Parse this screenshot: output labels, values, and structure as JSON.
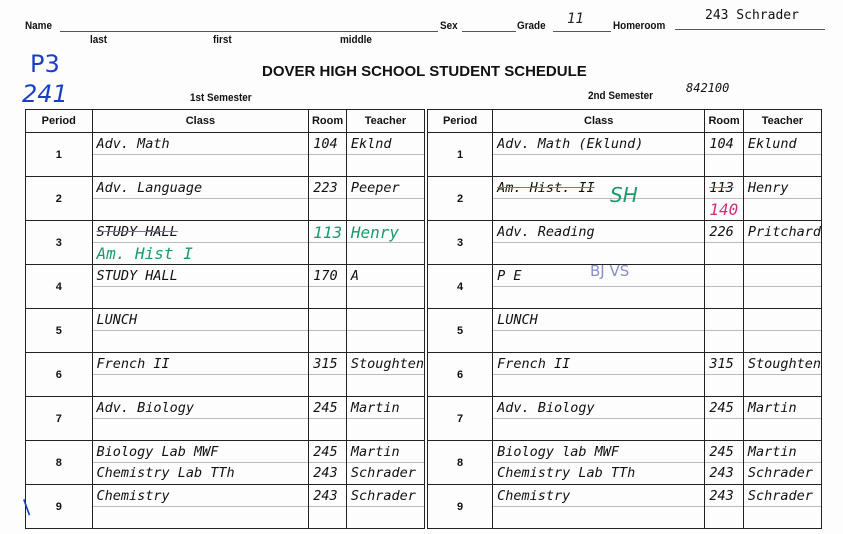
{
  "header": {
    "name_label": "Name",
    "sex_label": "Sex",
    "grade_label": "Grade",
    "grade_value": "11",
    "homeroom_label": "Homeroom",
    "homeroom_value": "243  Schrader",
    "last_label": "last",
    "first_label": "first",
    "middle_label": "middle",
    "note_p3": "P3",
    "note_241": "241",
    "title": "DOVER HIGH SCHOOL STUDENT SCHEDULE",
    "sem1_label": "1st Semester",
    "sem2_label": "2nd Semester",
    "student_number": "842100"
  },
  "columns": {
    "period": "Period",
    "class": "Class",
    "room": "Room",
    "teacher": "Teacher"
  },
  "rows": [
    {
      "period": "1",
      "s1": [
        [
          "Adv. Math",
          "104",
          "Eklnd"
        ],
        [
          "",
          "",
          ""
        ]
      ],
      "s2": [
        [
          "Adv. Math    (Eklund)",
          "104",
          "Eklund"
        ],
        [
          "",
          "",
          ""
        ]
      ]
    },
    {
      "period": "2",
      "s1": [
        [
          "Adv. Language",
          "223",
          "Peeper"
        ],
        [
          "",
          "",
          ""
        ]
      ],
      "s2": [
        [
          "Am. Hist. II",
          "113",
          "Henry"
        ],
        [
          "",
          "140",
          ""
        ]
      ]
    },
    {
      "period": "3",
      "s1": [
        [
          "STUDY HALL",
          "113",
          "Henry"
        ],
        [
          "Am. Hist I",
          "",
          ""
        ]
      ],
      "s2": [
        [
          "Adv. Reading",
          "226",
          "Pritchard"
        ],
        [
          "",
          "",
          ""
        ]
      ]
    },
    {
      "period": "4",
      "s1": [
        [
          "STUDY HALL",
          "170",
          "A"
        ],
        [
          "",
          "",
          ""
        ]
      ],
      "s2": [
        [
          "P E",
          "",
          ""
        ],
        [
          "",
          "",
          ""
        ]
      ]
    },
    {
      "period": "5",
      "s1": [
        [
          "LUNCH",
          "",
          ""
        ],
        [
          "",
          "",
          ""
        ]
      ],
      "s2": [
        [
          "LUNCH",
          "",
          ""
        ],
        [
          "",
          "",
          ""
        ]
      ]
    },
    {
      "period": "6",
      "s1": [
        [
          "French II",
          "315",
          "Stoughten"
        ],
        [
          "",
          "",
          ""
        ]
      ],
      "s2": [
        [
          "French II",
          "315",
          "Stoughten"
        ],
        [
          "",
          "",
          ""
        ]
      ]
    },
    {
      "period": "7",
      "s1": [
        [
          "Adv. Biology",
          "245",
          "Martin"
        ],
        [
          "",
          "",
          ""
        ]
      ],
      "s2": [
        [
          "Adv. Biology",
          "245",
          "Martin"
        ],
        [
          "",
          "",
          ""
        ]
      ]
    },
    {
      "period": "8",
      "s1": [
        [
          "Biology Lab  MWF",
          "245",
          "Martin"
        ],
        [
          "Chemistry Lab  TTh",
          "243",
          "Schrader"
        ]
      ],
      "s2": [
        [
          "Biology lab  MWF",
          "245",
          "Martin"
        ],
        [
          "Chemistry Lab  TTh",
          "243",
          "Schrader"
        ]
      ]
    },
    {
      "period": "9",
      "s1": [
        [
          "Chemistry",
          "243",
          "Schrader"
        ],
        [
          "",
          "",
          ""
        ]
      ],
      "s2": [
        [
          "Chemistry",
          "243",
          "Schrader"
        ],
        [
          "",
          "",
          ""
        ]
      ]
    }
  ],
  "annotations": {
    "sh": "SH",
    "pe_note": "BJ VS"
  },
  "colors": {
    "ink": "#222222",
    "blue_pen": "#1a3fc0",
    "green_pen": "#1a9a6a",
    "pink_pen": "#d0307a"
  }
}
